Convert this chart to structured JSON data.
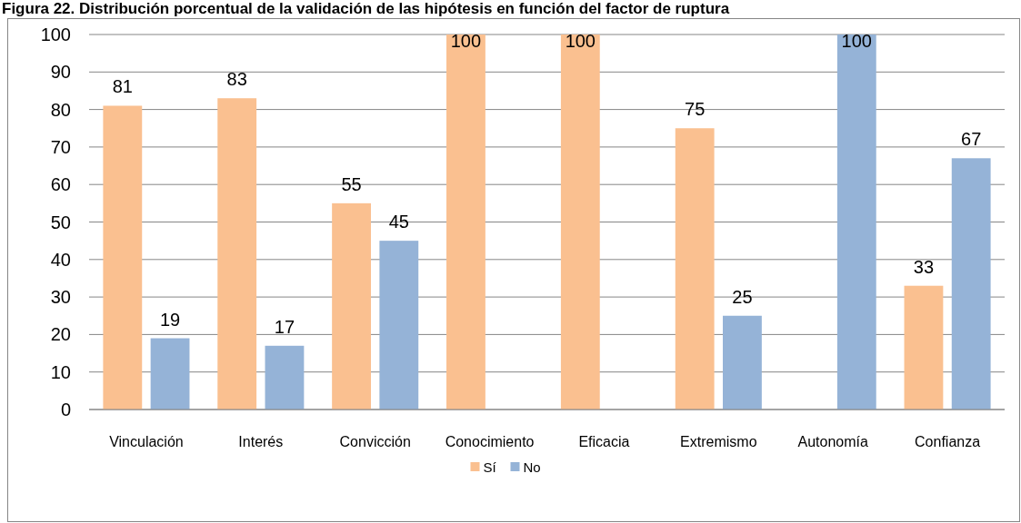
{
  "chart_data": {
    "type": "bar",
    "title": "Figura 22. Distribución porcentual de la validación de las hipótesis en función del factor de ruptura",
    "categories": [
      "Vinculación",
      "Interés",
      "Convicción",
      "Conocimiento",
      "Eficacia",
      "Extremismo",
      "Autonomía",
      "Confianza"
    ],
    "series": [
      {
        "name": "Sí",
        "color": "#fac090",
        "values": [
          81,
          83,
          55,
          100,
          100,
          75,
          0,
          33
        ],
        "value_labels": [
          "81",
          "83",
          "55",
          "100",
          "100",
          "75",
          null,
          "33"
        ]
      },
      {
        "name": "No",
        "color": "#95b3d7",
        "values": [
          19,
          17,
          45,
          0,
          0,
          25,
          100,
          67
        ],
        "value_labels": [
          "19",
          "17",
          "45",
          null,
          null,
          "25",
          "100",
          "67"
        ]
      }
    ],
    "ylim": [
      0,
      100
    ],
    "yticks": [
      0,
      10,
      20,
      30,
      40,
      50,
      60,
      70,
      80,
      90,
      100
    ],
    "grid": "y",
    "legend": "bottom"
  }
}
